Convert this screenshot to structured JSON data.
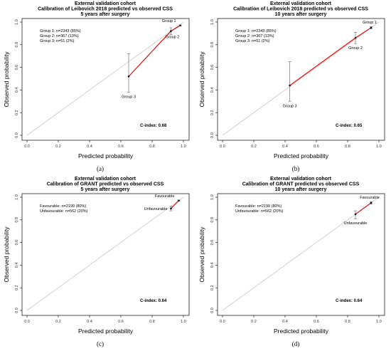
{
  "chart_data": [
    {
      "type": "scatter",
      "panel_letter": "(a)",
      "title_lines": [
        "External validation cohort",
        "Calibration of Leibovich 2018 predicted vs observed CSS",
        "5 years after surgery"
      ],
      "xlabel": "Predicted probability",
      "ylabel": "Observed probability",
      "xlim": [
        0,
        1
      ],
      "ylim": [
        0,
        1
      ],
      "ticks": [
        "0.0",
        "0.2",
        "0.4",
        "0.6",
        "0.8",
        "1.0"
      ],
      "group_notes": [
        "Group 1: n=2343 (85%)",
        "Group 2: n=367 (13%)",
        "Group 3: n=51 (2%)"
      ],
      "cindex": "C-index: 0.68",
      "points": [
        {
          "label": "Group 3",
          "x": 0.65,
          "y": 0.52,
          "lo": 0.38,
          "hi": 0.72,
          "label_pos": "below"
        },
        {
          "label": "Group 2",
          "x": 0.92,
          "y": 0.92,
          "lo": 0.89,
          "hi": 0.95,
          "label_pos": "below-right"
        },
        {
          "label": "Group 1",
          "x": 0.98,
          "y": 0.97,
          "lo": 0.965,
          "hi": 0.975,
          "label_pos": "above-left"
        }
      ],
      "line_color": "#e00000",
      "reference_color": "#c8c8c8"
    },
    {
      "type": "scatter",
      "panel_letter": "(b)",
      "title_lines": [
        "External validation cohort",
        "Calibration of Leibovich 2018 predicted vs observed CSS",
        "10 years after surgery"
      ],
      "xlabel": "Predicted probability",
      "ylabel": "Observed probability",
      "xlim": [
        0,
        1
      ],
      "ylim": [
        0,
        1
      ],
      "ticks": [
        "0.0",
        "0.2",
        "0.4",
        "0.6",
        "0.8",
        "1.0"
      ],
      "group_notes": [
        "Group 1: n=2343 (85%)",
        "Group 2: n=367 (13%)",
        "Group 3: n=51 (2%)"
      ],
      "cindex": "C-index: 0.65",
      "points": [
        {
          "label": "Group 3",
          "x": 0.43,
          "y": 0.44,
          "lo": 0.3,
          "hi": 0.65,
          "label_pos": "below"
        },
        {
          "label": "Group 2",
          "x": 0.85,
          "y": 0.86,
          "lo": 0.81,
          "hi": 0.91,
          "label_pos": "below"
        },
        {
          "label": "Group 1",
          "x": 0.95,
          "y": 0.95,
          "lo": 0.94,
          "hi": 0.96,
          "label_pos": "above"
        }
      ],
      "line_color": "#e00000",
      "reference_color": "#c8c8c8"
    },
    {
      "type": "scatter",
      "panel_letter": "(c)",
      "title_lines": [
        "External validation cohort",
        "Calibration of GRANT predicted vs observed CSS",
        "5 years after surgery"
      ],
      "xlabel": "Predicted probability",
      "ylabel": "Observed probability",
      "xlim": [
        0,
        1
      ],
      "ylim": [
        0,
        1
      ],
      "ticks": [
        "0.0",
        "0.2",
        "0.4",
        "0.6",
        "0.8",
        "1.0"
      ],
      "group_notes": [
        "Favourable: n=2199 (80%)",
        "Unfavourable: n=562 (20%)"
      ],
      "cindex": "C-index: 0.64",
      "points": [
        {
          "label": "Unfavourable",
          "x": 0.92,
          "y": 0.9,
          "lo": 0.88,
          "hi": 0.92,
          "label_pos": "left"
        },
        {
          "label": "Favourable",
          "x": 0.97,
          "y": 0.97,
          "lo": 0.965,
          "hi": 0.975,
          "label_pos": "above-left"
        }
      ],
      "line_color": "#e00000",
      "reference_color": "#c8c8c8"
    },
    {
      "type": "scatter",
      "panel_letter": "(d)",
      "title_lines": [
        "External validation cohort",
        "Calibration of GRANT predicted vs observed CSS",
        "10 years after surgery"
      ],
      "xlabel": "Predicted probability",
      "ylabel": "Observed probability",
      "xlim": [
        0,
        1
      ],
      "ylim": [
        0,
        1
      ],
      "ticks": [
        "0.0",
        "0.2",
        "0.4",
        "0.6",
        "0.8",
        "1.0"
      ],
      "group_notes": [
        "Favourable: n=2199 (80%)",
        "Unfavourable: n=562 (20%)"
      ],
      "cindex": "C-index: 0.64",
      "points": [
        {
          "label": "Unfavourable",
          "x": 0.85,
          "y": 0.85,
          "lo": 0.81,
          "hi": 0.88,
          "label_pos": "below"
        },
        {
          "label": "Favourable",
          "x": 0.95,
          "y": 0.95,
          "lo": 0.94,
          "hi": 0.96,
          "label_pos": "above"
        }
      ],
      "line_color": "#e00000",
      "reference_color": "#c8c8c8"
    }
  ]
}
